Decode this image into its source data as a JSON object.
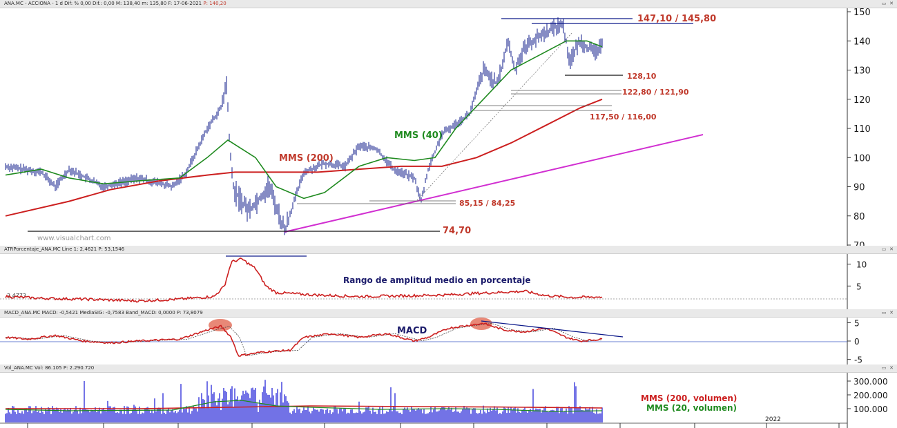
{
  "panels": {
    "price": {
      "header": "ANA.MC - ACCIONA - 1 d Dif: % 0,00 Dif.: 0,00 M: 138,40 m: 135,80 F: 17-06-2021 P: 140,20",
      "header_main": "ANA.MC - ACCIONA - 1 d Dif: % 0,00 Dif.: 0,00 M: 138,40 m: 135,80 F: 17-06-2021 ",
      "header_price": "P: 140,20",
      "watermark": "www.visualchart.com",
      "annotations": {
        "resistance": "147,10 / 145,80",
        "support_128": "128,10",
        "support_122": "122,80 / 121,90",
        "support_117": "117,50 / 116,00",
        "support_85": "85,15 / 84,25",
        "low": "74,70",
        "mms200": "MMS (200)",
        "mms40": "MMS (40)"
      }
    },
    "atr": {
      "header": "ATRPorcentaje_ANA.MC Line 1: 2,4621 P: 53,1546",
      "level_label": "2,4773",
      "annotation": "Rango de amplitud medio en porcentaje"
    },
    "macd": {
      "header": "MACD_ANA.MC MACD: -0,5421 MediaSIG: -0,7583 Band_MACD: 0,0000 P: 73,8079",
      "annotation": "MACD"
    },
    "volume": {
      "header": "Vol_ANA.MC Vol: 86.105 P: 2.290.720",
      "legend_200": "MMS (200, volumen)",
      "legend_20": "MMS (20, volumen)",
      "year_label": "2022"
    }
  },
  "controls": [
    "restore-icon",
    "close-icon"
  ],
  "colors": {
    "price": "#0d1a8a",
    "mms200": "#cc1f1f",
    "mms40": "#1f8a1f",
    "trendline": "#d12fd1",
    "annotation": "#c0392b",
    "macd_highlight": "#e0604a",
    "volume": "#1515d6"
  },
  "chart_data": [
    {
      "type": "line",
      "title": "ANA.MC - ACCIONA",
      "ylim": [
        70,
        150
      ],
      "yticks": [
        "150",
        "140",
        "130",
        "120",
        "110",
        "100",
        "90",
        "80",
        "70"
      ],
      "series": [
        {
          "name": "MMS (200)",
          "values": [
            80,
            85,
            88,
            91,
            93,
            94,
            95,
            95,
            95,
            96,
            97,
            97,
            102,
            110,
            114,
            120
          ]
        },
        {
          "name": "MMS (40)",
          "values": [
            94,
            95,
            93,
            90,
            92,
            103,
            92,
            85,
            92,
            99,
            97,
            100,
            122,
            138,
            140,
            138
          ]
        }
      ],
      "levels": [
        147.1,
        145.8,
        128.1,
        122.8,
        121.9,
        117.5,
        116.0,
        85.15,
        84.25,
        74.7
      ]
    },
    {
      "type": "line",
      "title": "ATRPorcentaje_ANA.MC",
      "ylim": [
        0,
        12
      ],
      "yticks": [
        "10",
        "5"
      ],
      "level": 2.4773
    },
    {
      "type": "line",
      "title": "MACD_ANA.MC",
      "ylim": [
        -6,
        6
      ],
      "yticks": [
        "5",
        "0",
        "-5"
      ]
    },
    {
      "type": "bar",
      "title": "Vol_ANA.MC",
      "ylim": [
        0,
        350000
      ],
      "yticks": [
        "300.000",
        "200.000",
        "100.000"
      ]
    }
  ]
}
